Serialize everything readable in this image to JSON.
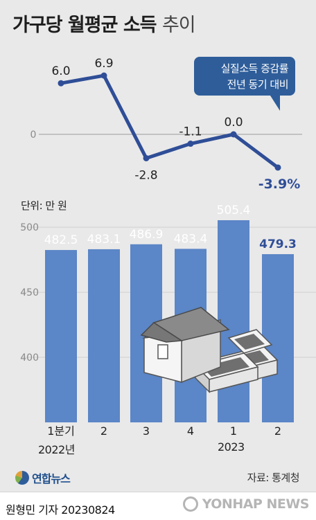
{
  "title": {
    "bold": "가구당 월평균 소득",
    "light": "추이"
  },
  "callout": {
    "line1": "실질소득 증감률",
    "line2": "전년 동기 대비"
  },
  "unit_label": "단위: 만 원",
  "period_labels": {
    "year_2022": "2022년",
    "year_2023": "2023"
  },
  "source": "자료: 통계청",
  "logo_text": "연합뉴스",
  "reporter": "원형민 기자  20230824",
  "watermark": "YONHAP NEWS",
  "colors": {
    "line": "#2f4e97",
    "bar": "#5b86c7",
    "zero_line": "#9a9a9a",
    "accent_label": "#2f4e97"
  },
  "chart_data": [
    {
      "type": "line",
      "series": [
        {
          "name": "실질소득 증감률",
          "values": [
            6.0,
            6.9,
            -2.8,
            -1.1,
            0.0,
            -3.9
          ]
        }
      ],
      "point_labels": [
        "6.0",
        "6.9",
        "-2.8",
        "-1.1",
        "0.0",
        "-3.9%"
      ],
      "zero_tick": "0",
      "ylim": [
        -5,
        9
      ]
    },
    {
      "type": "bar",
      "categories": [
        "1분기",
        "2",
        "3",
        "4",
        "1",
        "2"
      ],
      "values": [
        482.5,
        483.1,
        486.9,
        483.4,
        505.4,
        479.3
      ],
      "data_labels": [
        "482.5",
        "483.1",
        "486.9",
        "483.4",
        "505.4",
        "479.3"
      ],
      "yticks": [
        "500",
        "450",
        "400"
      ],
      "ylim": [
        350,
        515
      ]
    }
  ]
}
